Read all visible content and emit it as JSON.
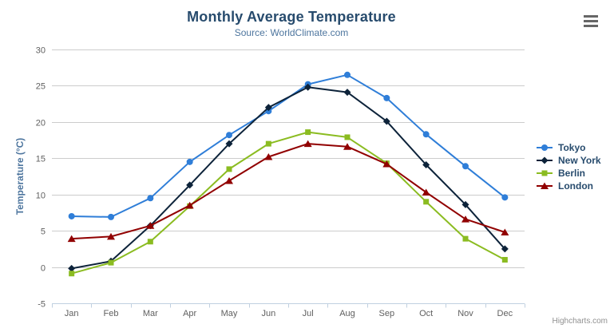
{
  "title": "Monthly Average Temperature",
  "subtitle": "Source: WorldClimate.com",
  "credits": "Highcharts.com",
  "menu": {
    "icon": "hamburger-menu-icon"
  },
  "colors": {
    "title": "#274b6d",
    "subtitle": "#4d759e",
    "axis_title": "#4d759e",
    "tick_labels": "#606060",
    "grid_line": "#cccccc",
    "axis_line": "#c0d0e0",
    "legend_text": "#274b6d",
    "credits_text": "#909090"
  },
  "chart_data": {
    "type": "line",
    "title": "Monthly Average Temperature",
    "subtitle": "Source: WorldClimate.com",
    "xlabel": "",
    "ylabel": "Temperature (°C)",
    "ylim": [
      -5,
      30
    ],
    "yticks": [
      -5,
      0,
      5,
      10,
      15,
      20,
      25,
      30
    ],
    "grid": true,
    "legend_position": "right",
    "categories": [
      "Jan",
      "Feb",
      "Mar",
      "Apr",
      "May",
      "Jun",
      "Jul",
      "Aug",
      "Sep",
      "Oct",
      "Nov",
      "Dec"
    ],
    "series": [
      {
        "name": "Tokyo",
        "color": "#2f7ed8",
        "marker": "circle",
        "values": [
          7.0,
          6.9,
          9.5,
          14.5,
          18.2,
          21.5,
          25.2,
          26.5,
          23.3,
          18.3,
          13.9,
          9.6
        ]
      },
      {
        "name": "New York",
        "color": "#0d233a",
        "marker": "diamond",
        "values": [
          -0.2,
          0.8,
          5.7,
          11.3,
          17.0,
          22.0,
          24.8,
          24.1,
          20.1,
          14.1,
          8.6,
          2.5
        ]
      },
      {
        "name": "Berlin",
        "color": "#8bbc21",
        "marker": "square",
        "values": [
          -0.9,
          0.6,
          3.5,
          8.4,
          13.5,
          17.0,
          18.6,
          17.9,
          14.3,
          9.0,
          3.9,
          1.0
        ]
      },
      {
        "name": "London",
        "color": "#910000",
        "marker": "triangle",
        "values": [
          3.9,
          4.2,
          5.7,
          8.5,
          11.9,
          15.2,
          17.0,
          16.6,
          14.2,
          10.3,
          6.6,
          4.8
        ]
      }
    ]
  }
}
